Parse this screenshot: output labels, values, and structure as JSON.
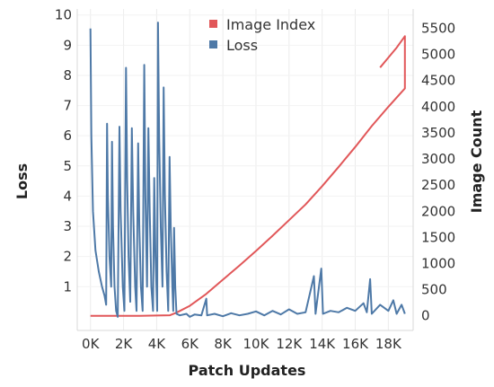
{
  "chart_data": {
    "type": "line",
    "x_axis": {
      "title": "Patch Updates",
      "range": [
        -800,
        19500
      ],
      "ticks": [
        0,
        2000,
        4000,
        6000,
        8000,
        10000,
        12000,
        14000,
        16000,
        18000
      ],
      "tick_labels": [
        "0K",
        "2K",
        "4K",
        "6K",
        "8K",
        "10K",
        "12K",
        "14K",
        "16K",
        "18K"
      ]
    },
    "y_left": {
      "title": "Loss",
      "range": [
        -0.45,
        10.2
      ],
      "ticks": [
        1,
        2,
        3,
        4,
        5,
        6,
        7,
        8,
        9,
        10
      ],
      "tick_labels": [
        "1",
        "2",
        "3",
        "4",
        "5",
        "6",
        "7",
        "8",
        "9",
        "10"
      ]
    },
    "y_right": {
      "title": "Image Count",
      "range": [
        -280,
        5870
      ],
      "ticks": [
        0,
        500,
        1000,
        1500,
        2000,
        2500,
        3000,
        3500,
        4000,
        4500,
        5000,
        5500
      ],
      "tick_labels": [
        "0",
        "500",
        "1000",
        "1500",
        "2000",
        "2500",
        "3000",
        "3500",
        "4000",
        "4500",
        "5000",
        "5500"
      ]
    },
    "grid": true,
    "legend": {
      "position": "top-center"
    },
    "series": [
      {
        "name": "Image Index",
        "axis": "right",
        "color": "#e15759",
        "points": [
          [
            0,
            0
          ],
          [
            1000,
            0
          ],
          [
            2000,
            0
          ],
          [
            3000,
            0
          ],
          [
            4000,
            5
          ],
          [
            4800,
            10
          ],
          [
            5200,
            60
          ],
          [
            6000,
            190
          ],
          [
            7000,
            420
          ],
          [
            8000,
            690
          ],
          [
            9000,
            960
          ],
          [
            10000,
            1240
          ],
          [
            11000,
            1530
          ],
          [
            12000,
            1830
          ],
          [
            13000,
            2130
          ],
          [
            14000,
            2480
          ],
          [
            15000,
            2850
          ],
          [
            16000,
            3230
          ],
          [
            17000,
            3630
          ],
          [
            18000,
            4000
          ],
          [
            18800,
            4280
          ],
          [
            19000,
            4350
          ],
          [
            19000,
            5350
          ],
          [
            18500,
            5130
          ],
          [
            18000,
            4940
          ],
          [
            17500,
            4750
          ]
        ]
      },
      {
        "name": "Loss",
        "axis": "left",
        "color": "#4e79a7",
        "points": [
          [
            0,
            9.55
          ],
          [
            50,
            6.0
          ],
          [
            150,
            3.5
          ],
          [
            300,
            2.2
          ],
          [
            500,
            1.5
          ],
          [
            700,
            1.0
          ],
          [
            850,
            0.7
          ],
          [
            950,
            0.4
          ],
          [
            1000,
            6.4
          ],
          [
            1050,
            4.0
          ],
          [
            1150,
            2.0
          ],
          [
            1250,
            1.0
          ],
          [
            1300,
            5.8
          ],
          [
            1360,
            3.0
          ],
          [
            1450,
            1.0
          ],
          [
            1550,
            0.2
          ],
          [
            1650,
            0.0
          ],
          [
            1750,
            6.3
          ],
          [
            1820,
            3.5
          ],
          [
            1950,
            1.0
          ],
          [
            2050,
            0.2
          ],
          [
            2150,
            8.25
          ],
          [
            2220,
            4.5
          ],
          [
            2300,
            2.0
          ],
          [
            2400,
            0.5
          ],
          [
            2500,
            6.25
          ],
          [
            2580,
            3.5
          ],
          [
            2700,
            1.0
          ],
          [
            2780,
            0.2
          ],
          [
            2880,
            5.75
          ],
          [
            2950,
            3.0
          ],
          [
            3050,
            1.0
          ],
          [
            3150,
            0.2
          ],
          [
            3250,
            8.35
          ],
          [
            3320,
            4.0
          ],
          [
            3420,
            1.0
          ],
          [
            3500,
            6.25
          ],
          [
            3580,
            3.5
          ],
          [
            3680,
            1.0
          ],
          [
            3780,
            0.2
          ],
          [
            3850,
            4.6
          ],
          [
            3930,
            2.0
          ],
          [
            4030,
            0.2
          ],
          [
            4080,
            9.75
          ],
          [
            4150,
            6.0
          ],
          [
            4250,
            3.0
          ],
          [
            4350,
            1.0
          ],
          [
            4420,
            7.6
          ],
          [
            4500,
            4.0
          ],
          [
            4600,
            1.5
          ],
          [
            4700,
            0.2
          ],
          [
            4780,
            5.3
          ],
          [
            4850,
            3.0
          ],
          [
            4950,
            1.0
          ],
          [
            5000,
            0.2
          ],
          [
            5050,
            2.95
          ],
          [
            5120,
            1.0
          ],
          [
            5200,
            0.1
          ],
          [
            5400,
            0.05
          ],
          [
            5800,
            0.1
          ],
          [
            6000,
            0.0
          ],
          [
            6300,
            0.08
          ],
          [
            6700,
            0.05
          ],
          [
            7000,
            0.6
          ],
          [
            7050,
            0.05
          ],
          [
            7500,
            0.1
          ],
          [
            8000,
            0.02
          ],
          [
            8500,
            0.12
          ],
          [
            9000,
            0.05
          ],
          [
            9500,
            0.1
          ],
          [
            10000,
            0.18
          ],
          [
            10500,
            0.05
          ],
          [
            11000,
            0.2
          ],
          [
            11500,
            0.08
          ],
          [
            12000,
            0.25
          ],
          [
            12500,
            0.1
          ],
          [
            13000,
            0.15
          ],
          [
            13500,
            1.35
          ],
          [
            13600,
            0.1
          ],
          [
            13950,
            1.6
          ],
          [
            14050,
            0.1
          ],
          [
            14500,
            0.2
          ],
          [
            15000,
            0.15
          ],
          [
            15500,
            0.3
          ],
          [
            16000,
            0.2
          ],
          [
            16500,
            0.45
          ],
          [
            16700,
            0.15
          ],
          [
            16900,
            1.25
          ],
          [
            17000,
            0.1
          ],
          [
            17500,
            0.4
          ],
          [
            18000,
            0.2
          ],
          [
            18300,
            0.55
          ],
          [
            18500,
            0.1
          ],
          [
            18800,
            0.4
          ],
          [
            19000,
            0.1
          ]
        ]
      }
    ]
  }
}
